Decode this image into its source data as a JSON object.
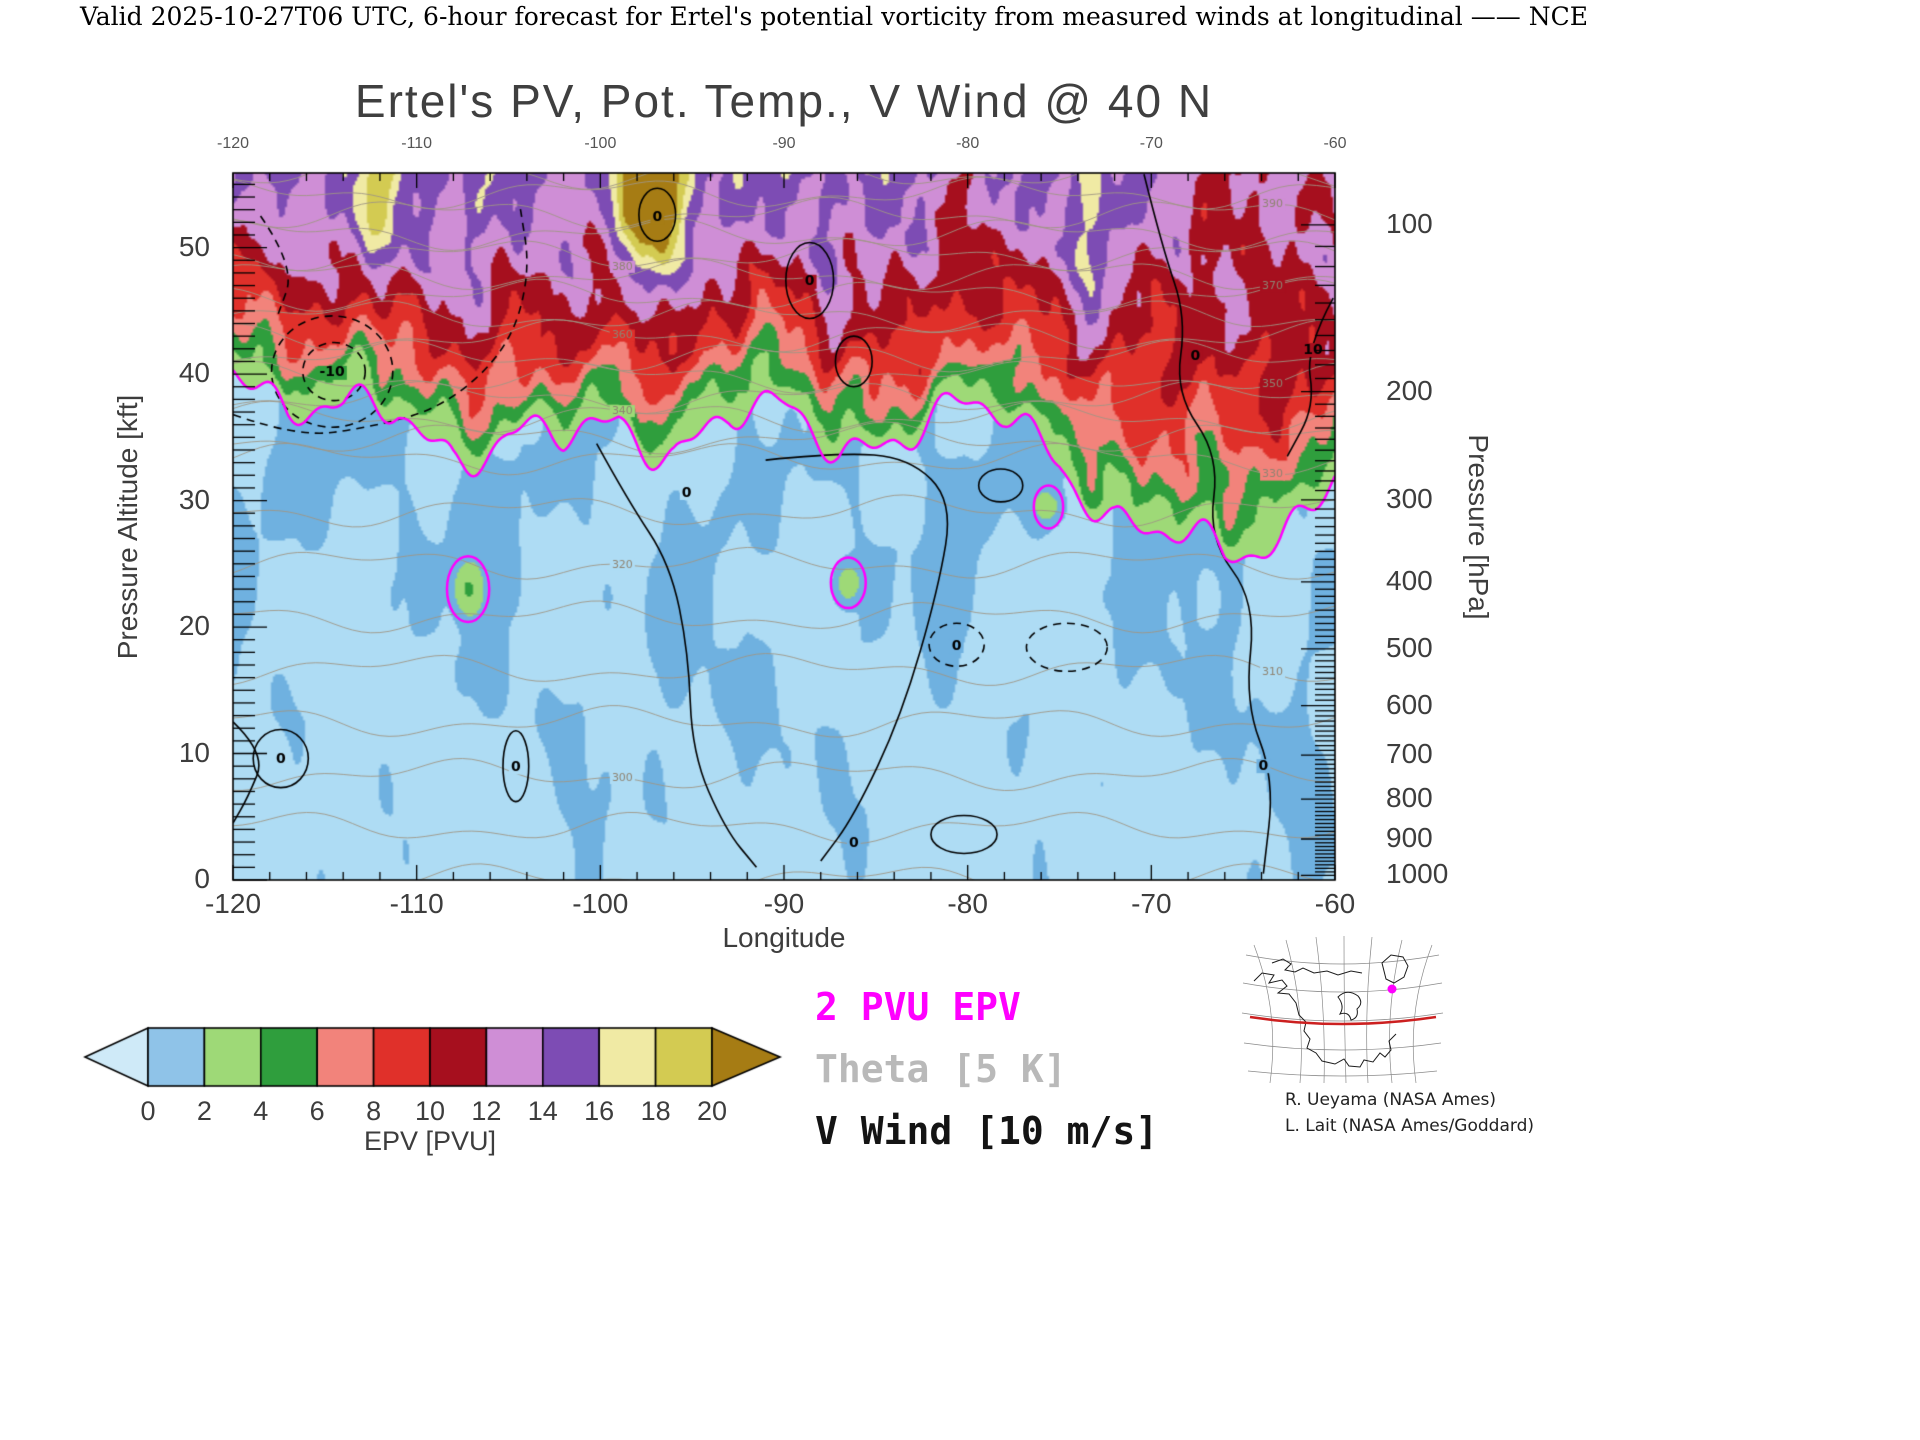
{
  "header": {
    "valid_line": "Valid 2025-10-27T06 UTC, 6-hour forecast for Ertel's potential vorticity from measured winds at longitudinal —— NCE"
  },
  "chart": {
    "title": "Ertel's PV, Pot. Temp., V Wind @ 40 N",
    "x_axis": {
      "label": "Longitude",
      "min": -120,
      "max": -60,
      "major_ticks": [
        -120,
        -110,
        -100,
        -90,
        -80,
        -70,
        -60
      ],
      "minor_step": 2
    },
    "y_axis_left": {
      "label": "Pressure Altitude [kft]",
      "min": 0,
      "max": 55.9,
      "major_ticks": [
        0,
        10,
        20,
        30,
        40,
        50
      ],
      "minor_step": 1
    },
    "y_axis_right": {
      "label": "Pressure [hPa]",
      "major_ticks": [
        100,
        200,
        300,
        400,
        500,
        600,
        700,
        800,
        900,
        1000
      ]
    },
    "colorbar": {
      "title": "EPV [PVU]",
      "tick_labels": [
        0,
        2,
        4,
        6,
        8,
        10,
        12,
        14,
        16,
        18,
        20
      ],
      "box_colors": [
        "#8fc3e8",
        "#9ed977",
        "#2f9e3d",
        "#f2837b",
        "#e0302a",
        "#a60f1e",
        "#cf8ed6",
        "#7d4cb4",
        "#f0eaa4",
        "#d3cb52"
      ],
      "under_arrow_color": "#cfeaf8",
      "over_arrow_color": "#a67c14"
    },
    "legend": [
      {
        "label": "2 PVU EPV",
        "color": "#ff00ff"
      },
      {
        "label": "Theta [5 K]",
        "color": "#b9b9b9"
      },
      {
        "label": "V Wind [10 m/s]",
        "color": "#141414"
      }
    ]
  },
  "chart_data": {
    "type": "heatmap",
    "title": "Ertel's PV, Pot. Temp., V Wind @ 40 N",
    "xlabel": "Longitude",
    "ylabel_left": "Pressure Altitude [kft]",
    "ylabel_right": "Pressure [hPa]",
    "x_range_deg": [
      -120,
      -60
    ],
    "y_range_kft": [
      0,
      55.9
    ],
    "pressure_ticks_hPa": [
      100,
      200,
      300,
      400,
      500,
      600,
      700,
      800,
      900,
      1000
    ],
    "fill_quantity": "Ertel potential vorticity (EPV)",
    "fill_units": "PVU",
    "fill_levels": [
      0,
      2,
      4,
      6,
      8,
      10,
      12,
      14,
      16,
      18,
      20
    ],
    "description": "Vertical cross-section along 40 N. Low-PV tropospheric air (blues, < 2 PVU) lies below the magenta dynamic tropopause near 34-37 kft; stratospheric high-PV air (greens, reds, purples, yellows, tan > 20 PVU) lies above, with a deep tropopause depression to about 25 kft near 66 W and an elevated tropopause near 42 kft at 120 W.",
    "dynamic_tropopause_2pvu_kft": {
      "longitudes": [
        -120,
        -117,
        -114,
        -111,
        -108,
        -105,
        -102,
        -99,
        -96,
        -93,
        -90,
        -87,
        -84,
        -81,
        -78,
        -75,
        -72,
        -69,
        -66,
        -63,
        -60
      ],
      "altitude_kft": [
        42,
        37.5,
        36,
        37,
        34.5,
        35,
        34,
        36,
        35,
        36.5,
        36,
        34.5,
        36,
        36.5,
        36,
        34,
        29,
        26.5,
        25,
        28,
        33
      ]
    },
    "epv_2pvu_contour_color": "#ff00ff",
    "epv_2pvu_closed_contours": [
      [
        -107.2,
        23,
        1.15,
        2.6
      ],
      [
        -86.5,
        23.5,
        0.95,
        2.0
      ],
      [
        -75.6,
        29.5,
        0.8,
        1.7
      ]
    ],
    "theta_contours": {
      "units": "K",
      "interval": 5,
      "min": 290,
      "max": 405
    },
    "theta_label_columns": [
      {
        "lon": -98.8,
        "levels": [
          300,
          320,
          340,
          360,
          380
        ]
      },
      {
        "lon": -63.4,
        "levels": [
          310,
          330,
          350,
          370,
          390
        ]
      }
    ],
    "v_wind_contours": {
      "units": "m/s",
      "interval": 10,
      "labeled_levels": [
        -10,
        0,
        10
      ],
      "negative_style": "dashed"
    },
    "v_wind_features": [
      {
        "style": "solid",
        "path": [
          [
            -100.2,
            34.5
          ],
          [
            -98.5,
            30
          ],
          [
            -96.2,
            25
          ],
          [
            -95.2,
            18
          ],
          [
            -95.0,
            10
          ],
          [
            -93.2,
            4
          ],
          [
            -91.5,
            1
          ]
        ]
      },
      {
        "style": "solid",
        "path": [
          [
            -91,
            33.2
          ],
          [
            -87,
            33.8
          ],
          [
            -83.2,
            33.4
          ],
          [
            -80.8,
            30
          ],
          [
            -81.6,
            23
          ],
          [
            -83.6,
            13
          ],
          [
            -86.2,
            5
          ],
          [
            -88,
            1.5
          ]
        ]
      },
      {
        "style": "solid",
        "path": [
          [
            -70.4,
            55.8
          ],
          [
            -69.4,
            50
          ],
          [
            -68.1,
            44.5
          ],
          [
            -68.7,
            38.5
          ],
          [
            -66.3,
            33.5
          ],
          [
            -66.9,
            27
          ],
          [
            -64.3,
            22
          ],
          [
            -64.9,
            14
          ],
          [
            -63.3,
            8
          ],
          [
            -63.9,
            0.5
          ]
        ]
      },
      {
        "style": "solid",
        "ellipse": [
          -88.6,
          47.4,
          1.3,
          3.0
        ]
      },
      {
        "style": "solid",
        "ellipse": [
          -86.2,
          41.0,
          1.0,
          2.0
        ]
      },
      {
        "style": "solid",
        "ellipse": [
          -96.9,
          52.6,
          1.0,
          2.1
        ]
      },
      {
        "style": "solid",
        "ellipse": [
          -78.2,
          31.2,
          1.2,
          1.3
        ]
      },
      {
        "style": "solid",
        "ellipse": [
          -117.4,
          9.6,
          1.5,
          2.3
        ]
      },
      {
        "style": "solid",
        "ellipse": [
          -104.6,
          9.0,
          0.7,
          2.8
        ]
      },
      {
        "style": "solid",
        "ellipse": [
          -80.2,
          3.6,
          1.8,
          1.5
        ]
      },
      {
        "style": "solid",
        "path": [
          [
            -120,
            12.5
          ],
          [
            -118.2,
            10
          ],
          [
            -119.2,
            6.5
          ],
          [
            -120,
            4.5
          ]
        ]
      },
      {
        "style": "dashed",
        "ellipse": [
          -114.6,
          40.2,
          3.3,
          4.4
        ]
      },
      {
        "style": "dashed",
        "ellipse": [
          -114.5,
          40.2,
          1.7,
          2.3
        ]
      },
      {
        "style": "dashed",
        "path": [
          [
            -120,
            36.8
          ],
          [
            -116.5,
            35
          ],
          [
            -112.5,
            35.8
          ],
          [
            -108.5,
            37.4
          ],
          [
            -105,
            42
          ],
          [
            -103.8,
            48
          ],
          [
            -104.4,
            53.5
          ]
        ]
      },
      {
        "style": "dashed",
        "ellipse": [
          -80.6,
          18.6,
          1.5,
          1.7
        ]
      },
      {
        "style": "dashed",
        "ellipse": [
          -74.6,
          18.4,
          2.2,
          1.9
        ]
      },
      {
        "style": "dashed",
        "path": [
          [
            -118.5,
            52.5
          ],
          [
            -116.6,
            48.5
          ],
          [
            -117.6,
            44.5
          ]
        ]
      },
      {
        "style": "solid",
        "path": [
          [
            -60.1,
            46
          ],
          [
            -61.6,
            42
          ],
          [
            -61.1,
            37.5
          ],
          [
            -62.6,
            33.5
          ]
        ]
      }
    ],
    "v_wind_labels": [
      {
        "text": "0",
        "lon": -95.3,
        "kft": 30.6
      },
      {
        "text": "0",
        "lon": -88.6,
        "kft": 47.3
      },
      {
        "text": "0",
        "lon": -96.9,
        "kft": 52.4
      },
      {
        "text": "0",
        "lon": -67.6,
        "kft": 41.4
      },
      {
        "text": "-10",
        "lon": -114.6,
        "kft": 40.1
      },
      {
        "text": "0",
        "lon": -80.6,
        "kft": 18.5
      },
      {
        "text": "0",
        "lon": -117.4,
        "kft": 9.5
      },
      {
        "text": "10",
        "lon": -61.2,
        "kft": 41.9
      },
      {
        "text": "0",
        "lon": -63.9,
        "kft": 9.0
      },
      {
        "text": "0",
        "lon": -86.2,
        "kft": 2.9
      },
      {
        "text": "0",
        "lon": -104.6,
        "kft": 8.9
      }
    ]
  },
  "inset": {
    "name": "Northern-hemisphere location map",
    "cross_section_latitude": "40 N",
    "line_color": "#cc2020",
    "marker_color": "#ff00ff",
    "credits": [
      "R. Ueyama (NASA Ames)",
      "L. Lait (NASA Ames/Goddard)"
    ]
  }
}
